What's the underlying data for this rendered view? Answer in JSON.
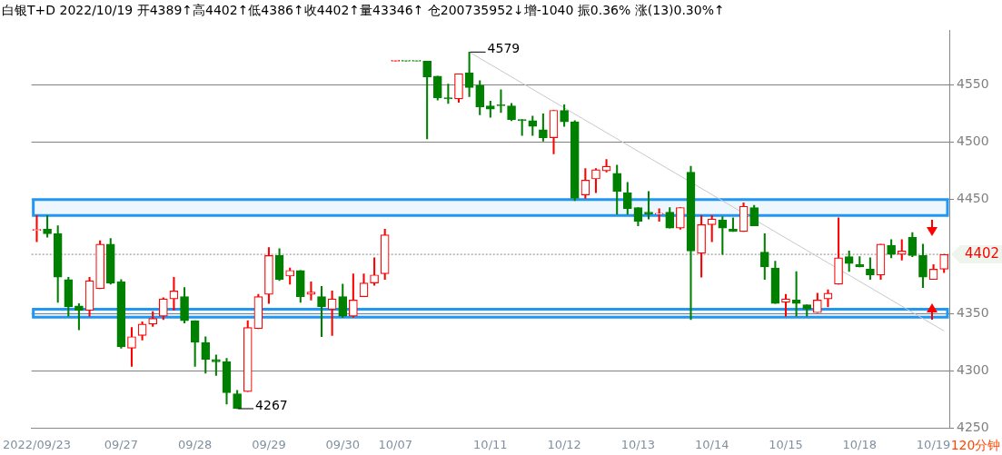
{
  "chart_data": {
    "type": "candlestick",
    "title": "白银T+D 2022/10/19 开4389↑高4402↑低4386↑收4402↑量43346↑ 仓200735952↓增-1040 振0.36% 涨(13)0.30%↑",
    "categories": [
      "2022/09/23",
      null,
      null,
      null,
      null,
      null,
      null,
      null,
      "09/27",
      null,
      null,
      null,
      null,
      null,
      null,
      "09/28",
      null,
      null,
      null,
      null,
      null,
      null,
      "09/29",
      null,
      null,
      null,
      null,
      null,
      null,
      "09/30",
      null,
      null,
      null,
      null,
      "10/07",
      null,
      null,
      null,
      null,
      null,
      null,
      null,
      null,
      "10/11",
      null,
      null,
      null,
      null,
      null,
      null,
      "10/12",
      null,
      null,
      null,
      null,
      null,
      null,
      "10/13",
      null,
      null,
      null,
      null,
      null,
      null,
      "10/14",
      null,
      null,
      null,
      null,
      null,
      null,
      "10/15",
      null,
      null,
      null,
      null,
      null,
      null,
      "10/18",
      null,
      null,
      null,
      null,
      null,
      null,
      "10/19",
      null
    ],
    "ohlc": [
      [
        4423,
        4436,
        4413,
        4423
      ],
      [
        4424,
        4436,
        4417,
        4420
      ],
      [
        4420,
        4427,
        4360,
        4382
      ],
      [
        4380,
        4382,
        4348,
        4356
      ],
      [
        4357,
        4359,
        4336,
        4353
      ],
      [
        4353,
        4382,
        4348,
        4379
      ],
      [
        4372,
        4414,
        4372,
        4411
      ],
      [
        4411,
        4416,
        4376,
        4377
      ],
      [
        4378,
        4380,
        4320,
        4321
      ],
      [
        4320,
        4338,
        4304,
        4330
      ],
      [
        4331,
        4343,
        4327,
        4341
      ],
      [
        4341,
        4352,
        4339,
        4346
      ],
      [
        4348,
        4364,
        4345,
        4363
      ],
      [
        4363,
        4382,
        4353,
        4370
      ],
      [
        4365,
        4373,
        4342,
        4344
      ],
      [
        4344,
        4344,
        4304,
        4325
      ],
      [
        4325,
        4330,
        4298,
        4310
      ],
      [
        4310,
        4314,
        4296,
        4308
      ],
      [
        4308,
        4311,
        4271,
        4281
      ],
      [
        4280,
        4283,
        4267,
        4267
      ],
      [
        4282,
        4344,
        4282,
        4338
      ],
      [
        4337,
        4367,
        4337,
        4365
      ],
      [
        4367,
        4408,
        4359,
        4401
      ],
      [
        4401,
        4407,
        4379,
        4380
      ],
      [
        4383,
        4390,
        4376,
        4388
      ],
      [
        4388,
        4388,
        4360,
        4365
      ],
      [
        4367,
        4378,
        4362,
        4369
      ],
      [
        4365,
        4374,
        4330,
        4356
      ],
      [
        4354,
        4370,
        4331,
        4363
      ],
      [
        4365,
        4376,
        4347,
        4348
      ],
      [
        4348,
        4385,
        4347,
        4362
      ],
      [
        4365,
        4385,
        4365,
        4377
      ],
      [
        4377,
        4399,
        4375,
        4384
      ],
      [
        4385,
        4424,
        4380,
        4419
      ],
      [
        4571,
        4571,
        4571,
        4571
      ],
      [
        4571,
        4571,
        4571,
        4571
      ],
      [
        4571,
        4571,
        4571,
        4571
      ],
      [
        4571,
        4571,
        4503,
        4557
      ],
      [
        4558,
        4558,
        4537,
        4539
      ],
      [
        4539,
        4551,
        4534,
        4538
      ],
      [
        4538,
        4560,
        4535,
        4560
      ],
      [
        4561,
        4579,
        4540,
        4548
      ],
      [
        4550,
        4554,
        4524,
        4531
      ],
      [
        4532,
        4536,
        4522,
        4529
      ],
      [
        4533,
        4546,
        4526,
        4532
      ],
      [
        4532,
        4534,
        4519,
        4520
      ],
      [
        4520,
        4520,
        4506,
        4519
      ],
      [
        4519,
        4523,
        4506,
        4514
      ],
      [
        4511,
        4525,
        4501,
        4504
      ],
      [
        4504,
        4528,
        4490,
        4528
      ],
      [
        4528,
        4533,
        4514,
        4518
      ],
      [
        4518,
        4519,
        4449,
        4451
      ],
      [
        4454,
        4477,
        4451,
        4467
      ],
      [
        4468,
        4477,
        4456,
        4476
      ],
      [
        4475,
        4485,
        4474,
        4479
      ],
      [
        4473,
        4480,
        4437,
        4457
      ],
      [
        4456,
        4465,
        4437,
        4442
      ],
      [
        4443,
        4443,
        4427,
        4431
      ],
      [
        4439,
        4457,
        4433,
        4437
      ],
      [
        4437,
        4442,
        4431,
        4438
      ],
      [
        4439,
        4443,
        4425,
        4425
      ],
      [
        4425,
        4443,
        4424,
        4443
      ],
      [
        4474,
        4479,
        4345,
        4405
      ],
      [
        4403,
        4436,
        4382,
        4428
      ],
      [
        4428,
        4436,
        4413,
        4433
      ],
      [
        4432,
        4435,
        4402,
        4425
      ],
      [
        4424,
        4434,
        4422,
        4422
      ],
      [
        4422,
        4447,
        4422,
        4444
      ],
      [
        4443,
        4445,
        4427,
        4427
      ],
      [
        4404,
        4420,
        4380,
        4391
      ],
      [
        4390,
        4396,
        4359,
        4359
      ],
      [
        4360,
        4367,
        4348,
        4363
      ],
      [
        4362,
        4387,
        4348,
        4359
      ],
      [
        4358,
        4358,
        4348,
        4354
      ],
      [
        4351,
        4368,
        4351,
        4362
      ],
      [
        4363,
        4371,
        4356,
        4368
      ],
      [
        4376,
        4434,
        4376,
        4399
      ],
      [
        4400,
        4405,
        4387,
        4394
      ],
      [
        4393,
        4400,
        4391,
        4391
      ],
      [
        4389,
        4399,
        4380,
        4384
      ],
      [
        4384,
        4411,
        4380,
        4411
      ],
      [
        4410,
        4415,
        4399,
        4402
      ],
      [
        4402,
        4415,
        4397,
        4405
      ],
      [
        4417,
        4421,
        4400,
        4401
      ],
      [
        4401,
        4411,
        4373,
        4382
      ],
      [
        4380,
        4393,
        4380,
        4389
      ],
      [
        4389,
        4402,
        4386,
        4402
      ]
    ],
    "colors": [
      "#ff0000",
      "#008000",
      "#008000",
      "#008000",
      "#008000",
      "#ff0000",
      "#ff0000",
      "#008000",
      "#008000",
      "#ff0000",
      "#ff0000",
      "#ff0000",
      "#ff0000",
      "#ff0000",
      "#008000",
      "#008000",
      "#008000",
      "#008000",
      "#008000",
      "#008000",
      "#ff0000",
      "#ff0000",
      "#ff0000",
      "#008000",
      "#ff0000",
      "#008000",
      "#ff0000",
      "#008000",
      "#ff0000",
      "#008000",
      "#ff0000",
      "#ff0000",
      "#ff0000",
      "#ff0000",
      "#ff0000",
      "#008000",
      "#008000",
      "#008000",
      "#008000",
      "#008000",
      "#ff0000",
      "#008000",
      "#008000",
      "#008000",
      "#008000",
      "#008000",
      "#008000",
      "#008000",
      "#008000",
      "#ff0000",
      "#008000",
      "#008000",
      "#ff0000",
      "#ff0000",
      "#ff0000",
      "#008000",
      "#008000",
      "#008000",
      "#008000",
      "#ff0000",
      "#008000",
      "#ff0000",
      "#008000",
      "#ff0000",
      "#ff0000",
      "#008000",
      "#008000",
      "#ff0000",
      "#008000",
      "#008000",
      "#008000",
      "#ff0000",
      "#008000",
      "#008000",
      "#ff0000",
      "#ff0000",
      "#ff0000",
      "#008000",
      "#008000",
      "#008000",
      "#ff0000",
      "#008000",
      "#ff0000",
      "#008000",
      "#008000",
      "#ff0000",
      "#ff0000"
    ],
    "series": [
      {
        "type": "line",
        "color": "#c8c8c8",
        "values": [
          null,
          null,
          null,
          null,
          null,
          null,
          null,
          null,
          null,
          null,
          null,
          null,
          null,
          null,
          null,
          null,
          null,
          null,
          null,
          null,
          null,
          null,
          null,
          null,
          null,
          null,
          null,
          null,
          null,
          null,
          null,
          null,
          null,
          null,
          null,
          null,
          null,
          null,
          null,
          null,
          null,
          4579,
          null,
          null,
          null,
          null,
          null,
          null,
          null,
          null,
          null,
          null,
          null,
          null,
          null,
          null,
          null,
          null,
          null,
          null,
          null,
          null,
          null,
          null,
          null,
          null,
          null,
          null,
          null,
          null,
          null,
          null,
          null,
          null,
          null,
          null,
          null,
          null,
          null,
          null,
          null,
          null,
          null,
          null,
          null,
          null,
          4335
        ]
      }
    ],
    "ylim": [
      4250,
      4598
    ],
    "yticks": [
      4250,
      4300,
      4350,
      4450,
      4500,
      4550
    ],
    "grid": "y",
    "legend": false,
    "ref_lines": [
      {
        "axis": "y",
        "value": 4402,
        "label": "4402",
        "line_style": "dotted"
      }
    ],
    "bands": [
      {
        "axis": "y",
        "from": 4436,
        "to": 4450,
        "color": "#2196f3"
      },
      {
        "axis": "y",
        "from": 4347,
        "to": 4354,
        "color": "#2196f3"
      }
    ],
    "annotations": [
      "4579",
      "4267",
      "120分钟"
    ]
  }
}
